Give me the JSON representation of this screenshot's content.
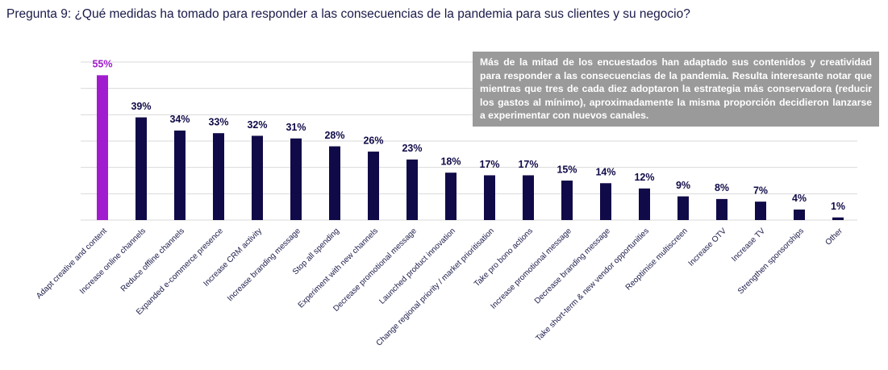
{
  "chart_data": {
    "type": "bar",
    "title": "Pregunta 9: ¿Qué medidas ha tomado para responder a las consecuencias de la pandemia para sus clientes y su negocio?",
    "annotation": "Más de la mitad de los encuestados han adaptado sus contenidos y creatividad para responder a las consecuencias de la pandemia. Resulta interesante notar que mientras que tres de cada diez adoptaron la estrategia más conservadora (reducir los gastos al mínimo), aproximadamente la misma proporción decidieron lanzarse a experimentar con nuevos canales.",
    "categories": [
      "Adapt creative and content",
      "Increase online channels",
      "Reduce offline channels",
      "Expanded e-commerce presence",
      "Increase CRM activity",
      "Increase branding message",
      "Stop all spending",
      "Experiment with new channels",
      "Decrease promotional message",
      "Launched product innovation",
      "Change regional priority / market prioritisation",
      "Take pro bono actions",
      "Increase promotional message",
      "Decrease branding message",
      "Take short-term & new vendor opportunities",
      "Reoptimise multiscreen",
      "Increase OTV",
      "Increase TV",
      "Strengthen sponsorships",
      "Other"
    ],
    "values": [
      55,
      39,
      34,
      33,
      32,
      31,
      28,
      26,
      23,
      18,
      17,
      17,
      15,
      14,
      12,
      9,
      8,
      7,
      4,
      1
    ],
    "value_labels": [
      "55%",
      "39%",
      "34%",
      "33%",
      "32%",
      "31%",
      "28%",
      "26%",
      "23%",
      "18%",
      "17%",
      "17%",
      "15%",
      "14%",
      "12%",
      "9%",
      "8%",
      "7%",
      "4%",
      "1%"
    ],
    "colors": [
      "#a21ccf",
      "#100b48",
      "#100b48",
      "#100b48",
      "#100b48",
      "#100b48",
      "#100b48",
      "#100b48",
      "#100b48",
      "#100b48",
      "#100b48",
      "#100b48",
      "#100b48",
      "#100b48",
      "#100b48",
      "#100b48",
      "#100b48",
      "#100b48",
      "#100b48",
      "#100b48"
    ],
    "ylim": [
      0,
      60
    ],
    "yticks": [
      0,
      10,
      20,
      30,
      40,
      50,
      60
    ],
    "grid": true
  }
}
